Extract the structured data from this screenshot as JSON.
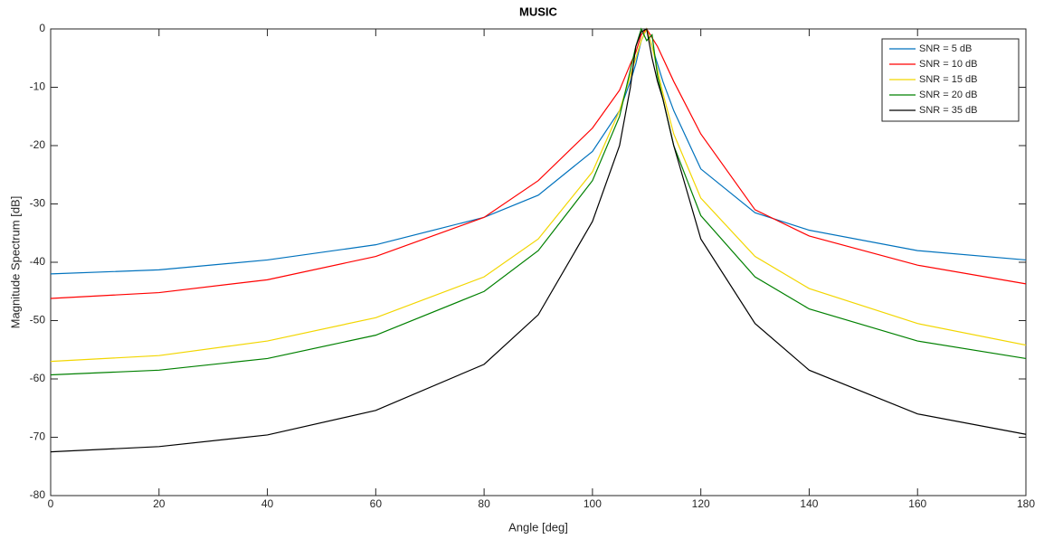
{
  "chart_data": {
    "type": "line",
    "title": "MUSIC",
    "x_label": "Angle [deg]",
    "y_label": "Magnitude Spectrum [dB]",
    "x": [
      0,
      20,
      40,
      60,
      80,
      90,
      100,
      105,
      107,
      108,
      109,
      110,
      111,
      112,
      113,
      115,
      120,
      130,
      140,
      160,
      180
    ],
    "series": [
      {
        "name": "SNR = 5 dB",
        "color": "#0072bd",
        "values": [
          -42,
          -41.3,
          -39.6,
          -37,
          -32.3,
          -28.5,
          -21,
          -14,
          -9,
          -6,
          -2,
          0,
          -3,
          -6,
          -9,
          -14,
          -24,
          -31.5,
          -34.5,
          -38,
          -39.6
        ]
      },
      {
        "name": "SNR = 10 dB",
        "color": "#ff0000",
        "values": [
          -46.2,
          -45.2,
          -43,
          -39,
          -32.3,
          -26,
          -17,
          -10.5,
          -6,
          -4,
          -1,
          0,
          -1.5,
          -3,
          -5,
          -9,
          -18,
          -31,
          -35.5,
          -40.5,
          -43.7
        ]
      },
      {
        "name": "SNR = 15 dB",
        "color": "#f2d600",
        "values": [
          -57,
          -56,
          -53.5,
          -49.5,
          -42.5,
          -36,
          -24.5,
          -14,
          -8,
          -5,
          -2,
          0,
          -3,
          -7,
          -11,
          -18,
          -29,
          -39,
          -44.5,
          -50.5,
          -54.2
        ]
      },
      {
        "name": "SNR = 20 dB",
        "color": "#008000",
        "values": [
          -59.3,
          -58.5,
          -56.5,
          -52.5,
          -45,
          -38,
          -26,
          -15,
          -7,
          -3,
          0,
          -2,
          -1,
          -8,
          -12,
          -20,
          -32,
          -42.5,
          -48,
          -53.5,
          -56.5
        ]
      },
      {
        "name": "SNR = 35 dB",
        "color": "#000000",
        "values": [
          -72.5,
          -71.6,
          -69.6,
          -65.4,
          -57.5,
          -49,
          -33,
          -20,
          -10,
          -3,
          -0.5,
          0,
          -5,
          -9,
          -12,
          -20,
          -36,
          -50.5,
          -58.5,
          -66,
          -69.5
        ]
      }
    ],
    "xlim": [
      0,
      180
    ],
    "ylim": [
      -80,
      0
    ],
    "xticks": [
      0,
      20,
      40,
      60,
      80,
      100,
      120,
      140,
      160,
      180
    ],
    "yticks": [
      -80,
      -70,
      -60,
      -50,
      -40,
      -30,
      -20,
      -10,
      0
    ],
    "grid": false,
    "legend": "top-right"
  }
}
